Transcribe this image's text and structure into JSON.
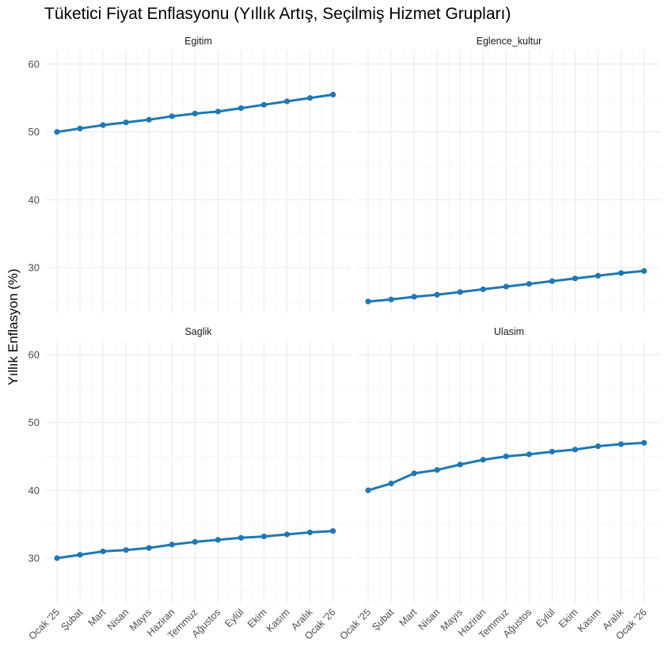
{
  "chart_data": {
    "type": "line",
    "title": "Tüketici Fiyat Enflasyonu (Yıllık Artış, Seçilmiş Hizmet Grupları)",
    "xlabel": "",
    "ylabel": "Yıllık Enflasyon (%)",
    "ylim": [
      23.4,
      62.1
    ],
    "yticks": [
      30,
      40,
      50,
      60
    ],
    "grid": true,
    "line_color": "#1f78b4",
    "categories": [
      "Ocak '25",
      "Şubat",
      "Mart",
      "Nisan",
      "Mayıs",
      "Haziran",
      "Temmuz",
      "Ağustos",
      "Eylül",
      "Ekim",
      "Kasım",
      "Aralık",
      "Ocak '26"
    ],
    "series": [
      {
        "name": "Egitim",
        "values": [
          50.0,
          50.5,
          51.0,
          51.4,
          51.8,
          52.3,
          52.7,
          53.0,
          53.5,
          54.0,
          54.5,
          55.0,
          55.5
        ]
      },
      {
        "name": "Eglence_kultur",
        "values": [
          25.0,
          25.3,
          25.7,
          26.0,
          26.4,
          26.8,
          27.2,
          27.6,
          28.0,
          28.4,
          28.8,
          29.2,
          29.5
        ]
      },
      {
        "name": "Saglik",
        "values": [
          30.0,
          30.5,
          31.0,
          31.2,
          31.5,
          32.0,
          32.4,
          32.7,
          33.0,
          33.2,
          33.5,
          33.8,
          34.0
        ]
      },
      {
        "name": "Ulasim",
        "values": [
          40.0,
          41.0,
          42.5,
          43.0,
          43.8,
          44.5,
          45.0,
          45.3,
          45.7,
          46.0,
          46.5,
          46.8,
          47.0
        ]
      }
    ]
  }
}
